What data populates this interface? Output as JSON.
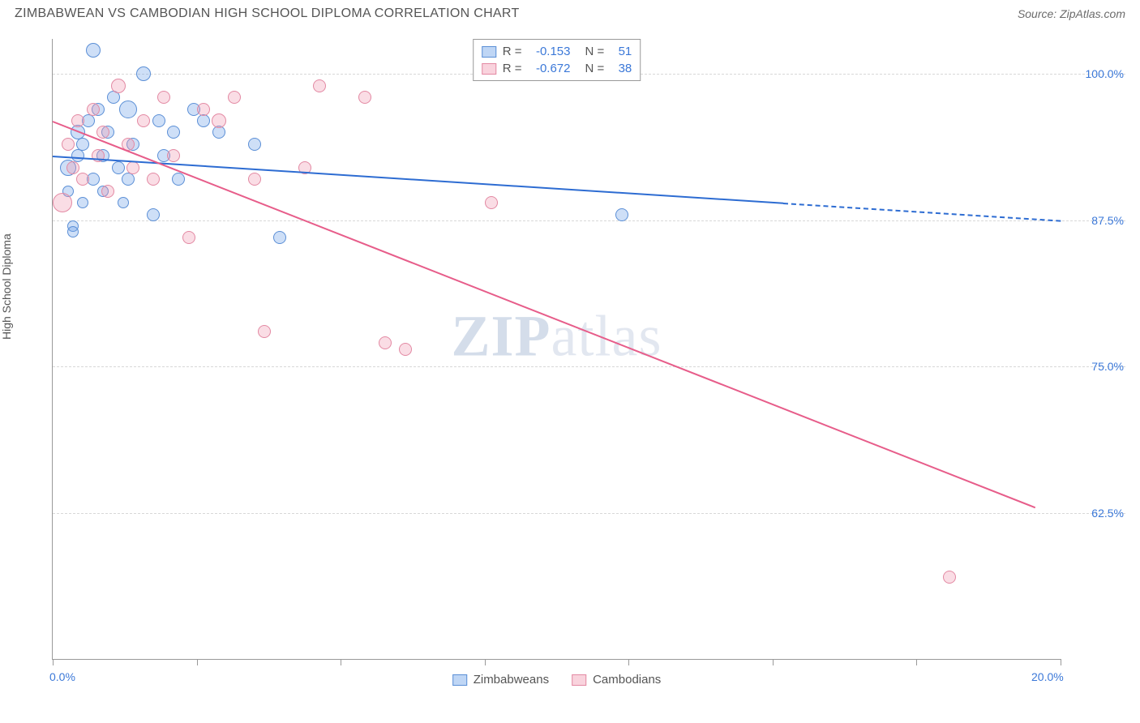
{
  "header": {
    "title": "ZIMBABWEAN VS CAMBODIAN HIGH SCHOOL DIPLOMA CORRELATION CHART",
    "source_prefix": "Source: ",
    "source_name": "ZipAtlas.com"
  },
  "watermark": {
    "bold": "ZIP",
    "rest": "atlas"
  },
  "chart": {
    "type": "scatter",
    "y_axis_label": "High School Diploma",
    "xlim": [
      0,
      20
    ],
    "ylim": [
      50,
      103
    ],
    "x_ticks": [
      0,
      2.857,
      5.714,
      8.571,
      11.428,
      14.285,
      17.142,
      20
    ],
    "x_tick_labels": {
      "0": "0.0%",
      "20": "20.0%"
    },
    "y_gridlines": [
      62.5,
      75,
      87.5,
      100
    ],
    "y_tick_labels": {
      "62.5": "62.5%",
      "75": "75.0%",
      "87.5": "87.5%",
      "100": "100.0%"
    },
    "background_color": "#ffffff",
    "grid_color": "#d8d8d8",
    "axis_color": "#999999",
    "label_color": "#3b78d8",
    "series": [
      {
        "name": "Zimbabweans",
        "color_fill": "rgba(114,163,232,0.35)",
        "color_stroke": "#5b8fd6",
        "marker_radius": 8,
        "regression": {
          "R": "-0.153",
          "N": "51",
          "x1": 0,
          "y1": 93,
          "x2": 14.5,
          "y2": 89,
          "extrap_x2": 20,
          "extrap_y2": 87.5,
          "line_color": "#2d6cd2",
          "line_width": 2
        },
        "points": [
          {
            "x": 0.3,
            "y": 92,
            "r": 10
          },
          {
            "x": 0.3,
            "y": 90,
            "r": 7
          },
          {
            "x": 0.4,
            "y": 87,
            "r": 7
          },
          {
            "x": 0.4,
            "y": 86.5,
            "r": 7
          },
          {
            "x": 0.5,
            "y": 93,
            "r": 8
          },
          {
            "x": 0.5,
            "y": 95,
            "r": 9
          },
          {
            "x": 0.6,
            "y": 89,
            "r": 7
          },
          {
            "x": 0.6,
            "y": 94,
            "r": 8
          },
          {
            "x": 0.7,
            "y": 96,
            "r": 8
          },
          {
            "x": 0.8,
            "y": 102,
            "r": 9
          },
          {
            "x": 0.8,
            "y": 91,
            "r": 8
          },
          {
            "x": 0.9,
            "y": 97,
            "r": 8
          },
          {
            "x": 1.0,
            "y": 93,
            "r": 8
          },
          {
            "x": 1.0,
            "y": 90,
            "r": 7
          },
          {
            "x": 1.1,
            "y": 95,
            "r": 8
          },
          {
            "x": 1.2,
            "y": 98,
            "r": 8
          },
          {
            "x": 1.3,
            "y": 92,
            "r": 8
          },
          {
            "x": 1.4,
            "y": 89,
            "r": 7
          },
          {
            "x": 1.5,
            "y": 97,
            "r": 11
          },
          {
            "x": 1.5,
            "y": 91,
            "r": 8
          },
          {
            "x": 1.6,
            "y": 94,
            "r": 8
          },
          {
            "x": 1.8,
            "y": 100,
            "r": 9
          },
          {
            "x": 2.0,
            "y": 88,
            "r": 8
          },
          {
            "x": 2.1,
            "y": 96,
            "r": 8
          },
          {
            "x": 2.2,
            "y": 93,
            "r": 8
          },
          {
            "x": 2.4,
            "y": 95,
            "r": 8
          },
          {
            "x": 2.5,
            "y": 91,
            "r": 8
          },
          {
            "x": 2.8,
            "y": 97,
            "r": 8
          },
          {
            "x": 3.0,
            "y": 96,
            "r": 8
          },
          {
            "x": 3.3,
            "y": 95,
            "r": 8
          },
          {
            "x": 4.0,
            "y": 94,
            "r": 8
          },
          {
            "x": 4.5,
            "y": 86,
            "r": 8
          },
          {
            "x": 11.3,
            "y": 88,
            "r": 8
          }
        ]
      },
      {
        "name": "Cambodians",
        "color_fill": "rgba(240,150,175,0.32)",
        "color_stroke": "#e389a3",
        "marker_radius": 8,
        "regression": {
          "R": "-0.672",
          "N": "38",
          "x1": 0,
          "y1": 96,
          "x2": 19.5,
          "y2": 63,
          "line_color": "#e75d8a",
          "line_width": 2
        },
        "points": [
          {
            "x": 0.2,
            "y": 89,
            "r": 12
          },
          {
            "x": 0.3,
            "y": 94,
            "r": 8
          },
          {
            "x": 0.4,
            "y": 92,
            "r": 8
          },
          {
            "x": 0.5,
            "y": 96,
            "r": 8
          },
          {
            "x": 0.6,
            "y": 91,
            "r": 8
          },
          {
            "x": 0.8,
            "y": 97,
            "r": 8
          },
          {
            "x": 0.9,
            "y": 93,
            "r": 8
          },
          {
            "x": 1.0,
            "y": 95,
            "r": 8
          },
          {
            "x": 1.1,
            "y": 90,
            "r": 8
          },
          {
            "x": 1.3,
            "y": 99,
            "r": 9
          },
          {
            "x": 1.5,
            "y": 94,
            "r": 8
          },
          {
            "x": 1.6,
            "y": 92,
            "r": 8
          },
          {
            "x": 1.8,
            "y": 96,
            "r": 8
          },
          {
            "x": 2.0,
            "y": 91,
            "r": 8
          },
          {
            "x": 2.2,
            "y": 98,
            "r": 8
          },
          {
            "x": 2.4,
            "y": 93,
            "r": 8
          },
          {
            "x": 2.7,
            "y": 86,
            "r": 8
          },
          {
            "x": 3.0,
            "y": 97,
            "r": 8
          },
          {
            "x": 3.3,
            "y": 96,
            "r": 9
          },
          {
            "x": 3.6,
            "y": 98,
            "r": 8
          },
          {
            "x": 4.0,
            "y": 91,
            "r": 8
          },
          {
            "x": 4.2,
            "y": 78,
            "r": 8
          },
          {
            "x": 5.0,
            "y": 92,
            "r": 8
          },
          {
            "x": 5.3,
            "y": 99,
            "r": 8
          },
          {
            "x": 6.2,
            "y": 98,
            "r": 8
          },
          {
            "x": 6.6,
            "y": 77,
            "r": 8
          },
          {
            "x": 7.0,
            "y": 76.5,
            "r": 8
          },
          {
            "x": 8.7,
            "y": 89,
            "r": 8
          },
          {
            "x": 17.8,
            "y": 57,
            "r": 8
          }
        ]
      }
    ],
    "legend_top": {
      "rows": [
        {
          "swatch_fill": "rgba(114,163,232,0.45)",
          "swatch_stroke": "#5b8fd6",
          "R_label": "R =",
          "R": "-0.153",
          "N_label": "N =",
          "N": "51"
        },
        {
          "swatch_fill": "rgba(240,150,175,0.42)",
          "swatch_stroke": "#e389a3",
          "R_label": "R =",
          "R": "-0.672",
          "N_label": "N =",
          "N": "38"
        }
      ]
    },
    "legend_bottom": {
      "items": [
        {
          "swatch_fill": "rgba(114,163,232,0.45)",
          "swatch_stroke": "#5b8fd6",
          "label": "Zimbabweans"
        },
        {
          "swatch_fill": "rgba(240,150,175,0.42)",
          "swatch_stroke": "#e389a3",
          "label": "Cambodians"
        }
      ]
    }
  }
}
